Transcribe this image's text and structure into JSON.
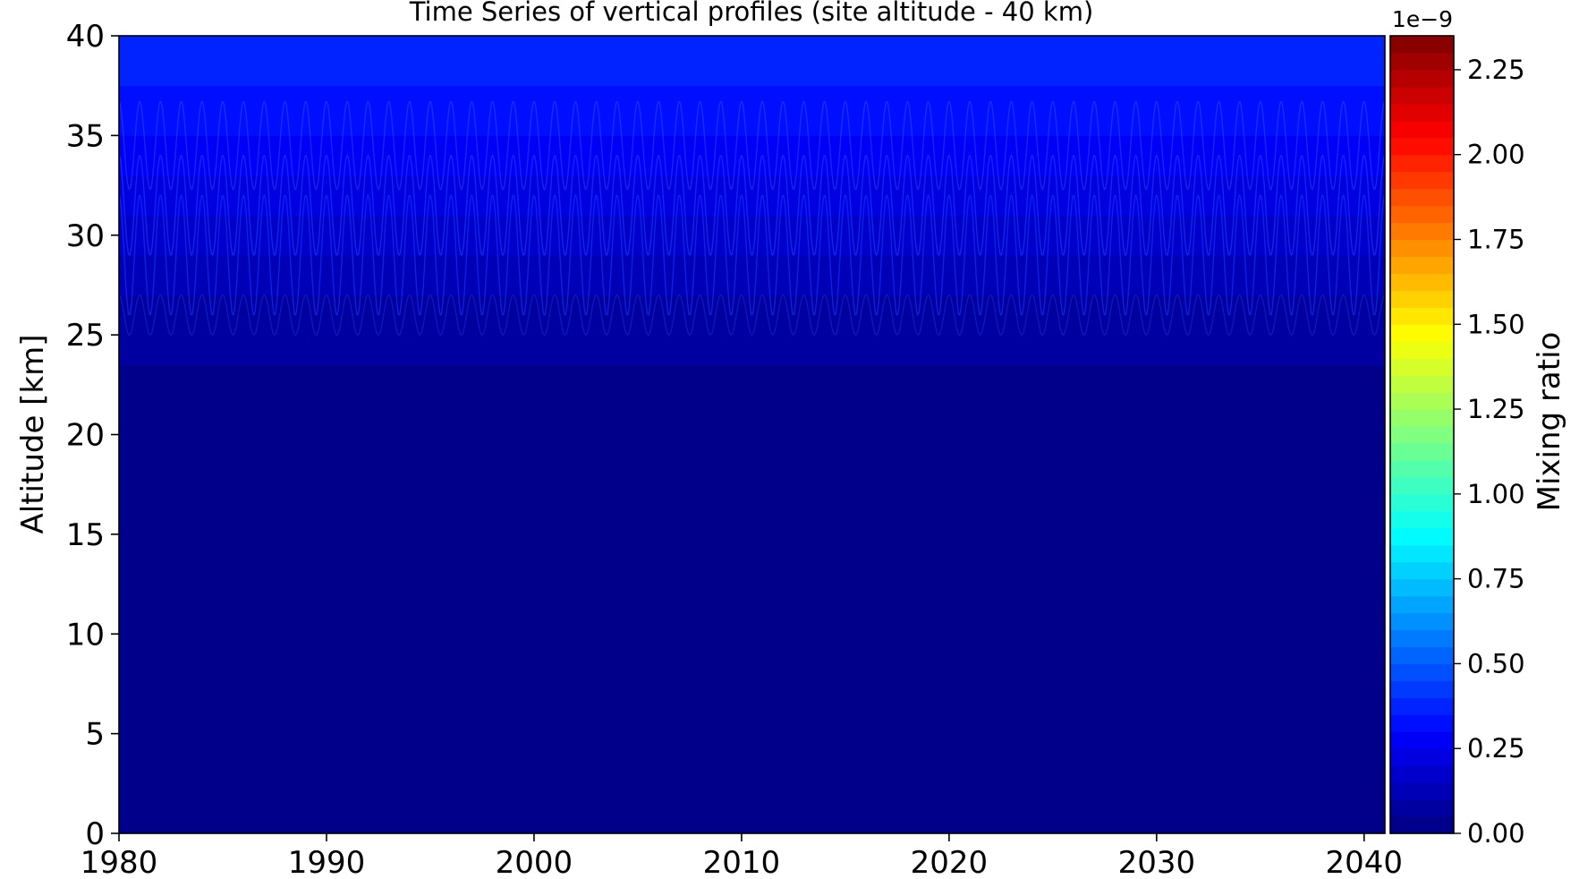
{
  "chart_data": {
    "type": "heatmap",
    "title": "Time Series of vertical profiles (site altitude - 40 km)",
    "xlabel": "",
    "ylabel": "Altitude [km]",
    "xlim": [
      1980,
      2041
    ],
    "ylim": [
      0,
      40
    ],
    "x_ticks": [
      1980,
      1990,
      2000,
      2010,
      2020,
      2030,
      2040
    ],
    "y_ticks": [
      0,
      5,
      10,
      15,
      20,
      25,
      30,
      35,
      40
    ],
    "grid": false,
    "colormap": "jet",
    "colorbar": {
      "label": "Mixing ratio",
      "exponent_label": "1e−9",
      "min": 0.0,
      "max": 2.35,
      "ticks": [
        "0.00",
        "0.25",
        "0.50",
        "0.75",
        "1.00",
        "1.25",
        "1.50",
        "1.75",
        "2.00",
        "2.25"
      ],
      "tick_values": [
        0.0,
        0.25,
        0.5,
        0.75,
        1.0,
        1.25,
        1.5,
        1.75,
        2.0,
        2.25
      ],
      "levels": 47
    },
    "profile_by_altitude": {
      "altitude_km": [
        0,
        20,
        25,
        28,
        32,
        35,
        38,
        40
      ],
      "mixing_ratio_1e-9": [
        0.02,
        0.03,
        0.06,
        0.12,
        0.22,
        0.3,
        0.36,
        0.4
      ]
    },
    "seasonal_cycle": "annual oscillation of isolines between about 26 and 32 km"
  }
}
